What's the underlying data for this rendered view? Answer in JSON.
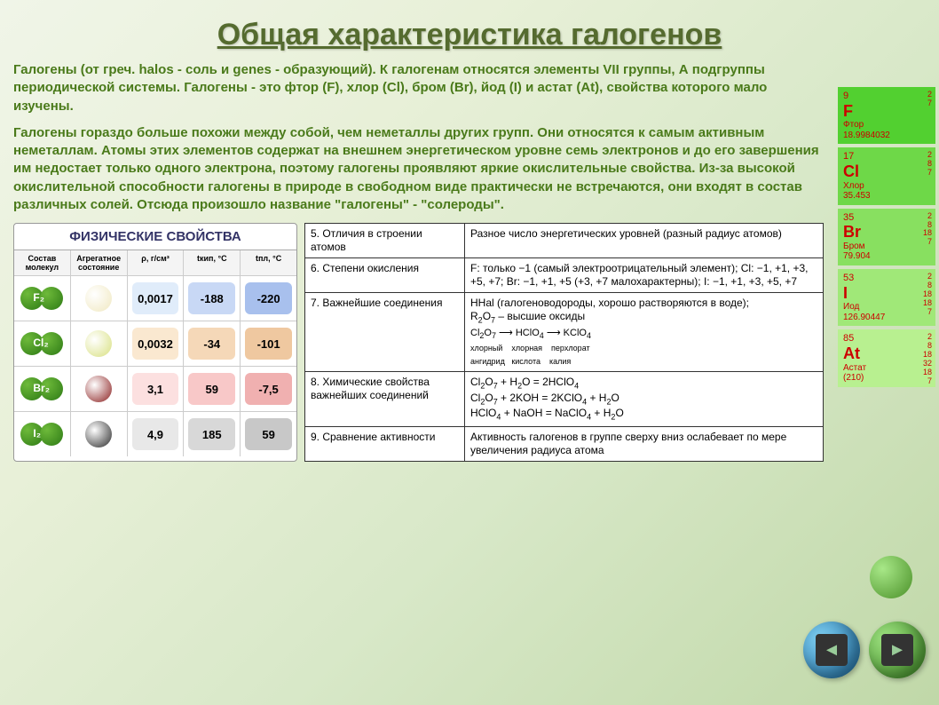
{
  "title": "Общая характеристика галогенов",
  "intro1": "Галогены (от греч. halos - соль и genes - образующий). К галогенам относятся элементы VII группы, А подгруппы периодической системы. Галогены - это фтор (F), хлор (Cl), бром (Br), йод (I) и астат (At), свойства которого мало изучены.",
  "intro2": "Галогены гораздо больше похожи между собой, чем неметаллы других групп. Они относятся к самым активным неметаллам. Атомы этих элементов содержат на внешнем энергетическом уровне семь электронов и до его завершения им недостает только одного электрона, поэтому галогены проявляют яркие окислительные свойства. Из-за высокой окислительной способности галогены в природе в свободном виде практически не встречаются, они входят в состав различных солей. Отсюда произошло название \"галогены\" - \"солероды\".",
  "phys": {
    "title": "ФИЗИЧЕСКИЕ СВОЙСТВА",
    "headers": [
      "Состав молекул",
      "Агрегатное состояние",
      "ρ, г/см³",
      "tкип, °C",
      "tпл, °C"
    ],
    "rows": [
      {
        "mol": "F₂",
        "agg_color": "#f0e8c0",
        "rho": "0,0017",
        "rho_bg": "#e0ecfa",
        "tk": "-188",
        "tk_bg": "#c8d8f5",
        "tp": "-220",
        "tp_bg": "#a8c0ed"
      },
      {
        "mol": "Cl₂",
        "agg_color": "#d8e080",
        "rho": "0,0032",
        "rho_bg": "#fae8d0",
        "tk": "-34",
        "tk_bg": "#f5d8b8",
        "tp": "-101",
        "tp_bg": "#efc8a0"
      },
      {
        "mol": "Br₂",
        "agg_color": "#8b2020",
        "rho": "3,1",
        "rho_bg": "#fce0e0",
        "tk": "59",
        "tk_bg": "#f8c8c8",
        "tp": "-7,5",
        "tp_bg": "#f0b0b0"
      },
      {
        "mol": "I₂",
        "agg_color": "#2a2a2a",
        "rho": "4,9",
        "rho_bg": "#e8e8e8",
        "tk": "185",
        "tk_bg": "#d8d8d8",
        "tp": "59",
        "tp_bg": "#c8c8c8"
      }
    ]
  },
  "atom": {
    "rows": [
      {
        "n": "5.",
        "left": "Отличия в строении атомов",
        "right": "Разное число энергетических уровней (разный радиус атомов)"
      },
      {
        "n": "6.",
        "left": "Степени окисления",
        "right": "F: только −1 (самый электроотрицательный элемент);\nCl: −1, +1, +3, +5, +7;\nBr: −1, +1, +5 (+3, +7 малохарактерны);\nI: −1, +1, +3, +5, +7"
      },
      {
        "n": "7.",
        "left": "Важнейшие соединения",
        "right_html": "HHal (галогеноводороды, хорошо растворяются в воде);<br>R<sub>2</sub>O<sub>7</sub> – высшие оксиды<br><span class='formula-line'>Cl<sub>2</sub>O<sub>7</sub> ⟶ HClO<sub>4</sub> ⟶ KClO<sub>4</sub></span><br><span style='font-size:9px'>хлорный&nbsp;&nbsp;&nbsp;&nbsp;хлорная&nbsp;&nbsp;&nbsp;&nbsp;перхлорат</span><br><span style='font-size:9px'>ангидрид&nbsp;&nbsp;&nbsp;кислота&nbsp;&nbsp;&nbsp;&nbsp;калия</span>"
      },
      {
        "n": "8.",
        "left": "Химические свойства важнейших соединений",
        "right_html": "Cl<sub>2</sub>O<sub>7</sub> + H<sub>2</sub>O = 2HClO<sub>4</sub><br>Cl<sub>2</sub>O<sub>7</sub> + 2KOH = 2KClO<sub>4</sub> + H<sub>2</sub>O<br>HClO<sub>4</sub> + NaOH = NaClO<sub>4</sub> + H<sub>2</sub>O"
      },
      {
        "n": "9.",
        "left": "Сравнение активности",
        "right": "Активность галогенов в группе сверху вниз ослабевает по мере увеличения радиуса атома"
      }
    ]
  },
  "elements": [
    {
      "num": "9",
      "sym": "F",
      "name": "Фтор",
      "mass": "18.9984032",
      "e": [
        "2",
        "7"
      ],
      "bg": "#52d030"
    },
    {
      "num": "17",
      "sym": "Cl",
      "name": "Хлор",
      "mass": "35.453",
      "e": [
        "2",
        "8",
        "7"
      ],
      "bg": "#6ed848"
    },
    {
      "num": "35",
      "sym": "Br",
      "name": "Бром",
      "mass": "79.904",
      "e": [
        "2",
        "8",
        "18",
        "7"
      ],
      "bg": "#88e060"
    },
    {
      "num": "53",
      "sym": "I",
      "name": "Иод",
      "mass": "126.90447",
      "e": [
        "2",
        "8",
        "18",
        "18",
        "7"
      ],
      "bg": "#a0e878"
    },
    {
      "num": "85",
      "sym": "At",
      "name": "Астат",
      "mass": "(210)",
      "e": [
        "2",
        "8",
        "18",
        "32",
        "18",
        "7"
      ],
      "bg": "#b8f090"
    }
  ],
  "nav": {
    "prev_bg": "radial-gradient(circle at 30% 30%, #7dcdf0, #1a6aa0)",
    "next_bg": "radial-gradient(circle at 30% 30%, #9de080, #3a8a20)",
    "prev_glyph": "◄",
    "next_glyph": "►"
  }
}
